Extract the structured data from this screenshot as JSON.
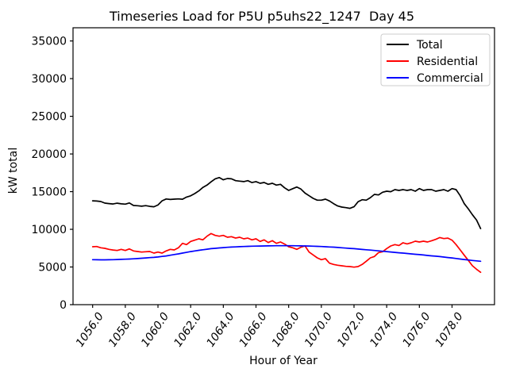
{
  "chart_data": {
    "type": "line",
    "title": "Timeseries Load for P5U p5uhs22_1247  Day 45",
    "xlabel": "Hour of Year",
    "ylabel": "kW total",
    "xlim": [
      1054.8,
      1080.6
    ],
    "ylim": [
      0,
      36750
    ],
    "grid": false,
    "legend_position": "upper right",
    "xticks": {
      "values": [
        1056,
        1058,
        1060,
        1062,
        1064,
        1066,
        1068,
        1070,
        1072,
        1074,
        1076,
        1078
      ],
      "labels": [
        "1056.0",
        "1058.0",
        "1060.0",
        "1062.0",
        "1064.0",
        "1066.0",
        "1068.0",
        "1070.0",
        "1072.0",
        "1074.0",
        "1076.0",
        "1078.0"
      ],
      "rotation": 55
    },
    "yticks": {
      "values": [
        0,
        5000,
        10000,
        15000,
        20000,
        25000,
        30000,
        35000
      ],
      "labels": [
        "0",
        "5000",
        "10000",
        "15000",
        "20000",
        "25000",
        "30000",
        "35000"
      ]
    },
    "x": [
      1056.0,
      1056.25,
      1056.5,
      1056.75,
      1057.0,
      1057.25,
      1057.5,
      1057.75,
      1058.0,
      1058.25,
      1058.5,
      1058.75,
      1059.0,
      1059.25,
      1059.5,
      1059.75,
      1060.0,
      1060.25,
      1060.5,
      1060.75,
      1061.0,
      1061.25,
      1061.5,
      1061.75,
      1062.0,
      1062.25,
      1062.5,
      1062.75,
      1063.0,
      1063.25,
      1063.5,
      1063.75,
      1064.0,
      1064.25,
      1064.5,
      1064.75,
      1065.0,
      1065.25,
      1065.5,
      1065.75,
      1066.0,
      1066.25,
      1066.5,
      1066.75,
      1067.0,
      1067.25,
      1067.5,
      1067.75,
      1068.0,
      1068.25,
      1068.5,
      1068.75,
      1069.0,
      1069.25,
      1069.5,
      1069.75,
      1070.0,
      1070.25,
      1070.5,
      1070.75,
      1071.0,
      1071.25,
      1071.5,
      1071.75,
      1072.0,
      1072.25,
      1072.5,
      1072.75,
      1073.0,
      1073.25,
      1073.5,
      1073.75,
      1074.0,
      1074.25,
      1074.5,
      1074.75,
      1075.0,
      1075.25,
      1075.5,
      1075.75,
      1076.0,
      1076.25,
      1076.5,
      1076.75,
      1077.0,
      1077.25,
      1077.5,
      1077.75,
      1078.0,
      1078.25,
      1078.5,
      1078.75,
      1079.0,
      1079.25,
      1079.5,
      1079.75
    ],
    "series": [
      {
        "name": "Total",
        "color": "#000000",
        "values": [
          13780,
          13750,
          13690,
          13480,
          13420,
          13360,
          13470,
          13380,
          13340,
          13500,
          13160,
          13130,
          13070,
          13140,
          13050,
          12990,
          13230,
          13780,
          14030,
          13960,
          14010,
          14040,
          13990,
          14280,
          14450,
          14740,
          15100,
          15560,
          15870,
          16300,
          16700,
          16870,
          16570,
          16740,
          16700,
          16460,
          16400,
          16330,
          16460,
          16210,
          16330,
          16110,
          16220,
          15970,
          16110,
          15870,
          15970,
          15510,
          15160,
          15400,
          15620,
          15340,
          14810,
          14460,
          14110,
          13870,
          13870,
          14000,
          13760,
          13400,
          13100,
          12950,
          12880,
          12780,
          12990,
          13660,
          13930,
          13870,
          14210,
          14640,
          14560,
          14920,
          15060,
          14990,
          15270,
          15160,
          15270,
          15160,
          15270,
          15060,
          15410,
          15160,
          15270,
          15270,
          15060,
          15160,
          15270,
          15060,
          15410,
          15270,
          14460,
          13400,
          12700,
          11930,
          11230,
          10100
        ]
      },
      {
        "name": "Residential",
        "color": "#ff0000",
        "values": [
          7690,
          7720,
          7550,
          7480,
          7340,
          7260,
          7190,
          7340,
          7190,
          7400,
          7130,
          7050,
          6980,
          7020,
          7050,
          6840,
          6980,
          6840,
          7130,
          7340,
          7270,
          7550,
          8140,
          7970,
          8390,
          8560,
          8740,
          8600,
          9090,
          9440,
          9190,
          9090,
          9190,
          8950,
          9020,
          8840,
          8950,
          8740,
          8840,
          8600,
          8740,
          8390,
          8600,
          8250,
          8490,
          8140,
          8320,
          8040,
          7690,
          7550,
          7340,
          7620,
          7790,
          6980,
          6600,
          6210,
          5970,
          6110,
          5510,
          5340,
          5230,
          5160,
          5090,
          5050,
          4980,
          5050,
          5340,
          5760,
          6210,
          6390,
          6910,
          7020,
          7440,
          7790,
          7970,
          7860,
          8210,
          8070,
          8210,
          8420,
          8320,
          8420,
          8320,
          8490,
          8670,
          8910,
          8770,
          8840,
          8560,
          7970,
          7270,
          6560,
          5860,
          5160,
          4700,
          4300
        ]
      },
      {
        "name": "Commercial",
        "color": "#0000ff",
        "values": [
          5970,
          5960,
          5950,
          5950,
          5960,
          5970,
          5990,
          6010,
          6030,
          6060,
          6090,
          6120,
          6160,
          6200,
          6240,
          6280,
          6330,
          6400,
          6470,
          6560,
          6650,
          6740,
          6840,
          6940,
          7040,
          7130,
          7210,
          7290,
          7360,
          7430,
          7480,
          7530,
          7570,
          7610,
          7640,
          7670,
          7700,
          7720,
          7740,
          7760,
          7770,
          7780,
          7790,
          7800,
          7810,
          7820,
          7820,
          7820,
          7820,
          7820,
          7810,
          7800,
          7790,
          7780,
          7760,
          7740,
          7720,
          7690,
          7660,
          7630,
          7590,
          7550,
          7510,
          7470,
          7430,
          7380,
          7330,
          7290,
          7240,
          7190,
          7140,
          7090,
          7040,
          6990,
          6940,
          6890,
          6840,
          6790,
          6740,
          6690,
          6640,
          6590,
          6530,
          6480,
          6430,
          6380,
          6320,
          6260,
          6200,
          6130,
          6060,
          5990,
          5930,
          5870,
          5810,
          5760
        ]
      }
    ]
  }
}
